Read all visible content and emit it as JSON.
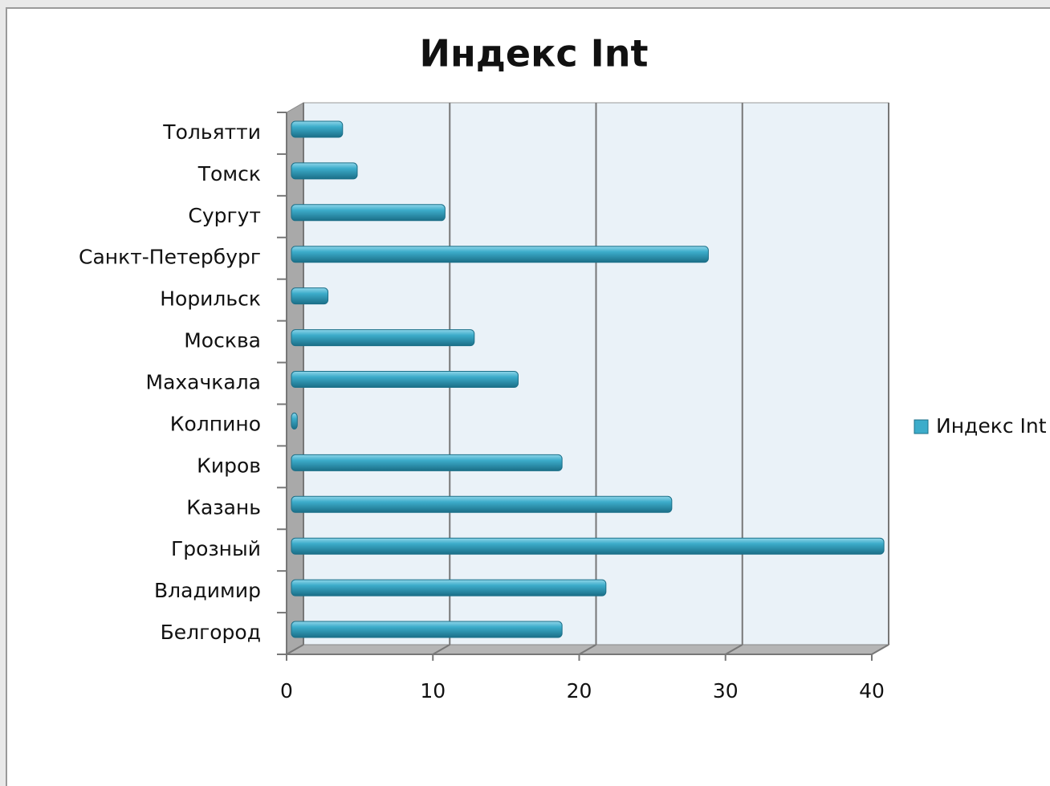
{
  "chart_data": {
    "type": "bar",
    "orientation": "horizontal",
    "title": "Индекс Int",
    "categories": [
      "Белгород",
      "Владимир",
      "Грозный",
      "Казань",
      "Киров",
      "Колпино",
      "Махачкала",
      "Москва",
      "Норильск",
      "Санкт-Петербург",
      "Сургут",
      "Томск",
      "Тольятти"
    ],
    "series": [
      {
        "name": "Индекс Int",
        "color": "#3cacca",
        "values": [
          18.5,
          21.5,
          40.5,
          26,
          18.5,
          0.4,
          15.5,
          12.5,
          2.5,
          28.5,
          10.5,
          4.5,
          3.5
        ]
      }
    ],
    "xlim": [
      0,
      40
    ],
    "xticks": [
      0,
      10,
      20,
      30,
      40
    ],
    "grid": true,
    "legend": "right"
  }
}
